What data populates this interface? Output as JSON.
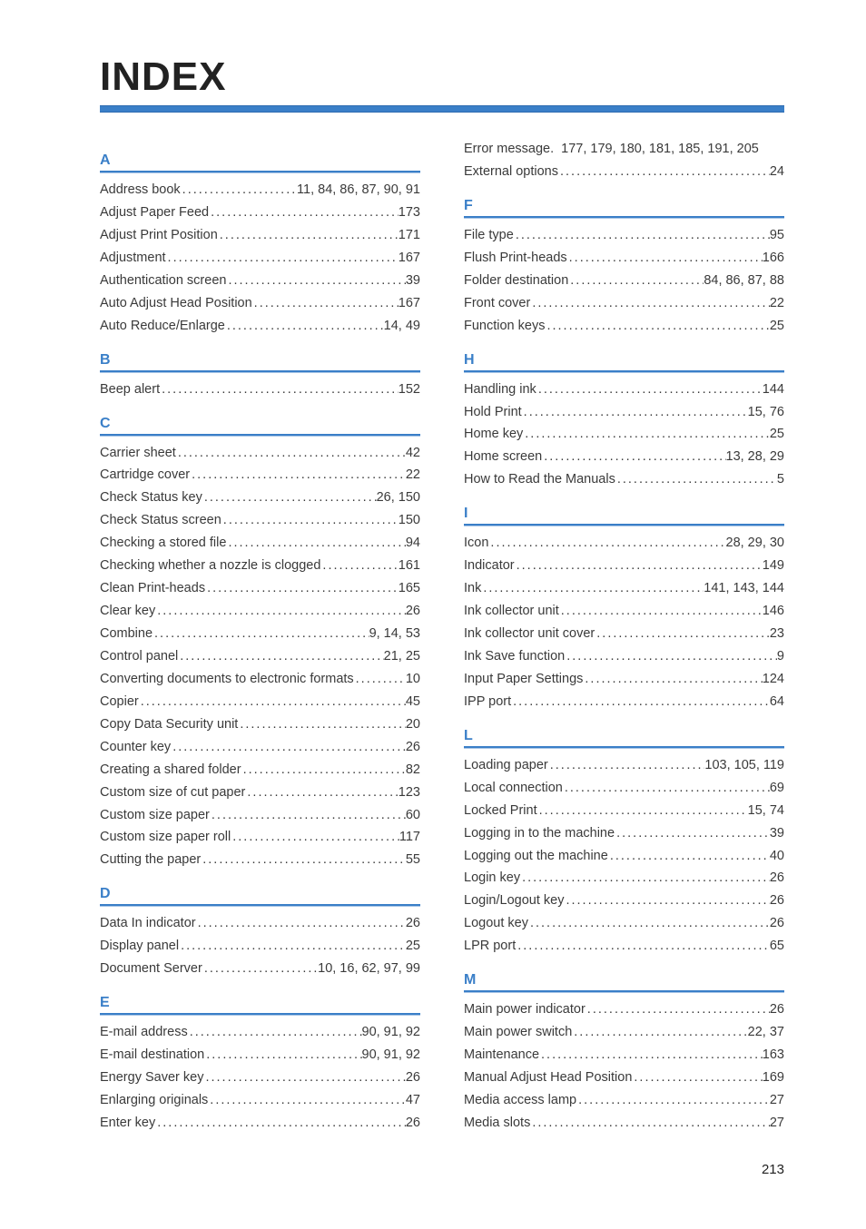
{
  "title": "INDEX",
  "page_number": "213",
  "colors": {
    "accent": "#3a7fc8",
    "accent_light": "#a9c6e6",
    "text": "#3a3a3a"
  },
  "left": [
    {
      "letter": "A",
      "entries": [
        {
          "label": "Address book",
          "pages": "11, 84, 86, 87, 90, 91"
        },
        {
          "label": "Adjust Paper Feed",
          "pages": "173"
        },
        {
          "label": "Adjust Print Position",
          "pages": "171"
        },
        {
          "label": "Adjustment",
          "pages": "167"
        },
        {
          "label": "Authentication screen",
          "pages": "39"
        },
        {
          "label": "Auto Adjust Head Position",
          "pages": "167"
        },
        {
          "label": "Auto Reduce/Enlarge",
          "pages": "14, 49"
        }
      ]
    },
    {
      "letter": "B",
      "entries": [
        {
          "label": "Beep alert",
          "pages": "152"
        }
      ]
    },
    {
      "letter": "C",
      "entries": [
        {
          "label": "Carrier sheet",
          "pages": "42"
        },
        {
          "label": "Cartridge cover",
          "pages": "22"
        },
        {
          "label": "Check Status key",
          "pages": "26, 150"
        },
        {
          "label": "Check Status screen",
          "pages": "150"
        },
        {
          "label": "Checking a stored file",
          "pages": "94"
        },
        {
          "label": "Checking whether a nozzle is clogged",
          "pages": "161"
        },
        {
          "label": "Clean Print-heads",
          "pages": "165"
        },
        {
          "label": "Clear key",
          "pages": "26"
        },
        {
          "label": "Combine",
          "pages": "9, 14, 53"
        },
        {
          "label": "Control panel",
          "pages": "21, 25"
        },
        {
          "label": "Converting documents to electronic formats",
          "pages": "10"
        },
        {
          "label": "Copier",
          "pages": "45"
        },
        {
          "label": "Copy Data Security unit",
          "pages": "20"
        },
        {
          "label": "Counter key",
          "pages": "26"
        },
        {
          "label": "Creating a shared folder",
          "pages": "82"
        },
        {
          "label": "Custom size of cut paper",
          "pages": "123"
        },
        {
          "label": "Custom size paper",
          "pages": "60"
        },
        {
          "label": "Custom size paper roll",
          "pages": "117"
        },
        {
          "label": "Cutting the paper",
          "pages": "55"
        }
      ]
    },
    {
      "letter": "D",
      "entries": [
        {
          "label": "Data In indicator",
          "pages": "26"
        },
        {
          "label": "Display panel",
          "pages": "25"
        },
        {
          "label": "Document Server",
          "pages": "10, 16, 62, 97, 99"
        }
      ]
    },
    {
      "letter": "E",
      "entries": [
        {
          "label": "E-mail address",
          "pages": "90, 91, 92"
        },
        {
          "label": "E-mail destination",
          "pages": "90, 91, 92"
        },
        {
          "label": "Energy Saver key",
          "pages": "26"
        },
        {
          "label": "Enlarging originals",
          "pages": "47"
        },
        {
          "label": "Enter key",
          "pages": "26"
        }
      ]
    }
  ],
  "right_pre": [
    {
      "label": "Error message.",
      "pages": "177, 179, 180, 181, 185, 191, 205",
      "nodots": true
    },
    {
      "label": "External options",
      "pages": "24"
    }
  ],
  "right": [
    {
      "letter": "F",
      "entries": [
        {
          "label": "File type",
          "pages": "95"
        },
        {
          "label": "Flush Print-heads",
          "pages": "166"
        },
        {
          "label": "Folder destination",
          "pages": "84, 86, 87, 88"
        },
        {
          "label": "Front cover",
          "pages": "22"
        },
        {
          "label": "Function keys",
          "pages": "25"
        }
      ]
    },
    {
      "letter": "H",
      "entries": [
        {
          "label": "Handling ink",
          "pages": "144"
        },
        {
          "label": "Hold Print",
          "pages": "15, 76"
        },
        {
          "label": "Home key",
          "pages": "25"
        },
        {
          "label": "Home screen",
          "pages": "13, 28, 29"
        },
        {
          "label": "How to Read the Manuals",
          "pages": "5"
        }
      ]
    },
    {
      "letter": "I",
      "entries": [
        {
          "label": "Icon",
          "pages": "28, 29, 30"
        },
        {
          "label": "Indicator",
          "pages": "149"
        },
        {
          "label": "Ink",
          "pages": "141, 143, 144"
        },
        {
          "label": "Ink collector unit",
          "pages": "146"
        },
        {
          "label": "Ink collector unit cover",
          "pages": "23"
        },
        {
          "label": "Ink Save function",
          "pages": "9"
        },
        {
          "label": "Input Paper Settings",
          "pages": "124"
        },
        {
          "label": "IPP port",
          "pages": "64"
        }
      ]
    },
    {
      "letter": "L",
      "entries": [
        {
          "label": "Loading paper",
          "pages": "103, 105, 119"
        },
        {
          "label": "Local connection",
          "pages": "69"
        },
        {
          "label": "Locked Print",
          "pages": "15, 74"
        },
        {
          "label": "Logging in to the machine",
          "pages": "39"
        },
        {
          "label": "Logging out the machine",
          "pages": "40"
        },
        {
          "label": "Login key",
          "pages": "26"
        },
        {
          "label": "Login/Logout key",
          "pages": "26"
        },
        {
          "label": "Logout key",
          "pages": "26"
        },
        {
          "label": "LPR port",
          "pages": "65"
        }
      ]
    },
    {
      "letter": "M",
      "entries": [
        {
          "label": "Main power indicator",
          "pages": "26"
        },
        {
          "label": "Main power switch",
          "pages": "22, 37"
        },
        {
          "label": "Maintenance",
          "pages": "163"
        },
        {
          "label": "Manual Adjust Head Position",
          "pages": "169"
        },
        {
          "label": "Media access lamp",
          "pages": "27"
        },
        {
          "label": "Media slots",
          "pages": "27"
        }
      ]
    }
  ]
}
